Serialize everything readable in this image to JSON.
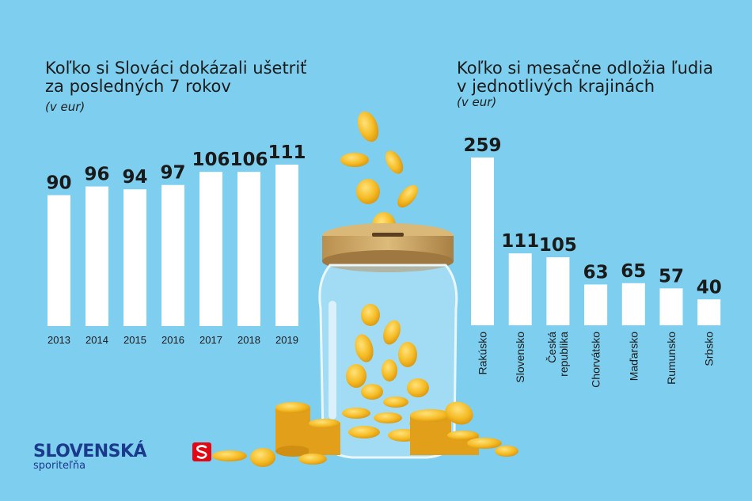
{
  "left_title": {
    "line1": "Koľko si Slováci dokázali ušetriť",
    "line2": "za posledných 7 rokov",
    "unit": "(v eur)"
  },
  "right_title": {
    "line1": "Koľko si mesačne odložia ľudia",
    "line2": "v jednotlivých krajinách",
    "unit": "(v eur)"
  },
  "brand": {
    "name": "SLOVENSKÁ",
    "sub": "sporiteľňa",
    "accent": "#e30613",
    "text_color": "#1b3a8c"
  },
  "colors": {
    "background": "#7ecfef",
    "bar": "#ffffff",
    "label": "#1a1a1a",
    "coin": "#f2b824",
    "lid": "#c9a560"
  },
  "chart_data": [
    {
      "type": "bar",
      "categories": [
        "2013",
        "2014",
        "2015",
        "2016",
        "2017",
        "2018",
        "2019"
      ],
      "values": [
        90,
        96,
        94,
        97,
        106,
        106,
        111
      ],
      "title": "Koľko si Slováci dokázali ušetriť za posledných 7 rokov",
      "unit": "(v eur)",
      "xlabel": "",
      "ylabel": "",
      "ylim": [
        0,
        111
      ],
      "grid": false
    },
    {
      "type": "bar",
      "categories": [
        "Rakúsko",
        "Slovensko",
        "Česká republika",
        "Chorvátsko",
        "Maďarsko",
        "Rumunsko",
        "Srbsko"
      ],
      "values": [
        259,
        111,
        105,
        63,
        65,
        57,
        40
      ],
      "title": "Koľko si mesačne odložia ľudia v jednotlivých krajinách",
      "unit": "(v eur)",
      "xlabel": "",
      "ylabel": "",
      "ylim": [
        0,
        259
      ],
      "grid": false
    }
  ]
}
